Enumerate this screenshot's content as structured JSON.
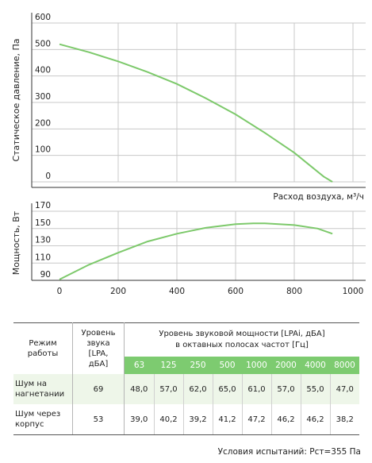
{
  "chart_data": [
    {
      "type": "line",
      "ylabel": "Статическое давление, Па",
      "xlabel": "Расход воздуха, м³/ч",
      "xlim": [
        0,
        1000
      ],
      "ylim": [
        0,
        600
      ],
      "yticks": [
        "600",
        "500",
        "400",
        "300",
        "200",
        "100",
        "0"
      ],
      "grid": true,
      "color": "#7dc96b",
      "series": [
        {
          "x": [
            0,
            100,
            200,
            300,
            400,
            500,
            600,
            700,
            800,
            900,
            930
          ],
          "y": [
            520,
            490,
            455,
            415,
            370,
            315,
            255,
            185,
            110,
            20,
            0
          ]
        }
      ]
    },
    {
      "type": "line",
      "ylabel": "Мощность, Вт",
      "xlim": [
        0,
        1000
      ],
      "ylim": [
        90,
        170
      ],
      "yticks": [
        "170",
        "150",
        "130",
        "110",
        "90"
      ],
      "xticks": [
        "0",
        "200",
        "400",
        "600",
        "800",
        "1000"
      ],
      "grid": true,
      "color": "#7dc96b",
      "series": [
        {
          "x": [
            0,
            100,
            200,
            300,
            400,
            500,
            600,
            660,
            700,
            800,
            880,
            930
          ],
          "y": [
            91,
            108,
            122,
            135,
            144,
            151,
            155,
            156,
            156,
            154,
            150,
            144
          ]
        }
      ]
    }
  ],
  "table": {
    "header_mode": [
      "Режим",
      "работы"
    ],
    "header_level": [
      "Уровень",
      "звука",
      "[LPA,",
      "дБА]"
    ],
    "header_power": [
      "Уровень звуковой мощности [LPAi, дБА]",
      "в октавных полосах частот [Гц]"
    ],
    "bands": [
      "63",
      "125",
      "250",
      "500",
      "1000",
      "2000",
      "4000",
      "8000"
    ],
    "rows": [
      {
        "mode": [
          "Шум на",
          "нагнетании"
        ],
        "level": "69",
        "values": [
          "48,0",
          "57,0",
          "62,0",
          "65,0",
          "61,0",
          "57,0",
          "55,0",
          "47,0"
        ]
      },
      {
        "mode": [
          "Шум через",
          "корпус"
        ],
        "level": "53",
        "values": [
          "39,0",
          "40,2",
          "39,2",
          "41,2",
          "47,2",
          "46,2",
          "46,2",
          "38,2"
        ]
      }
    ]
  },
  "conditions": "Условия испытаний: Pст=355 Па"
}
